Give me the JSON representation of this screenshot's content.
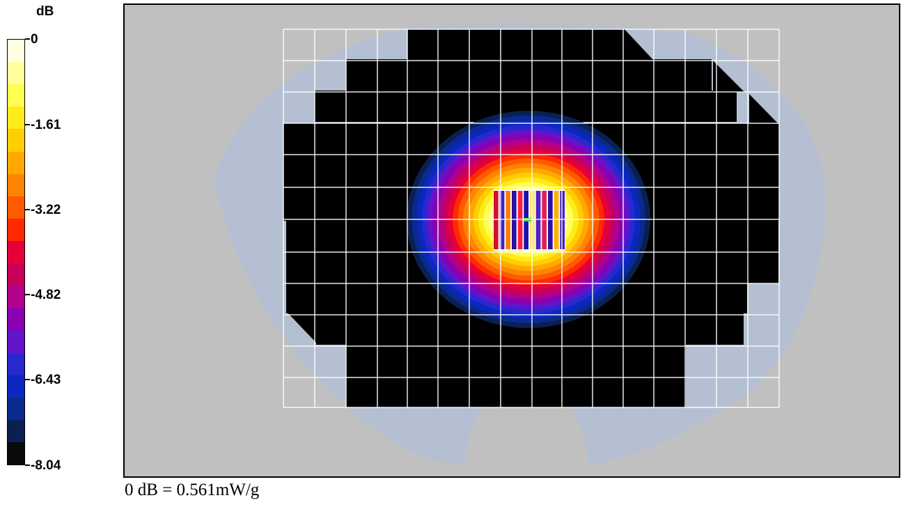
{
  "chart_data": {
    "type": "heatmap",
    "title": "",
    "colorbar": {
      "unit_label": "dB",
      "range": [
        -8.04,
        0
      ],
      "tick_values": [
        0,
        -1.61,
        -3.22,
        -4.82,
        -6.43,
        -8.04
      ],
      "tick_labels": [
        "0",
        "-1.61",
        "-3.22",
        "-4.82",
        "-6.43",
        "-8.04"
      ],
      "colors_top_to_bottom": [
        "#ffffe0",
        "#ffff9c",
        "#ffff50",
        "#ffea1a",
        "#ffcd00",
        "#ffa800",
        "#ff8400",
        "#ff5a00",
        "#ff2a00",
        "#e6003a",
        "#c8005a",
        "#b0008c",
        "#8a00b0",
        "#6414c8",
        "#2828d0",
        "#0a28c0",
        "#0a2a90",
        "#0a2050",
        "#0a0a0a"
      ]
    },
    "peak_value_db": 0,
    "reference_note": "0 dB = 0.561mW/g",
    "grid": true,
    "background_color": "#c0c0c0",
    "phantom_color": "#b4c0d2",
    "low_value_color": "#000000"
  }
}
